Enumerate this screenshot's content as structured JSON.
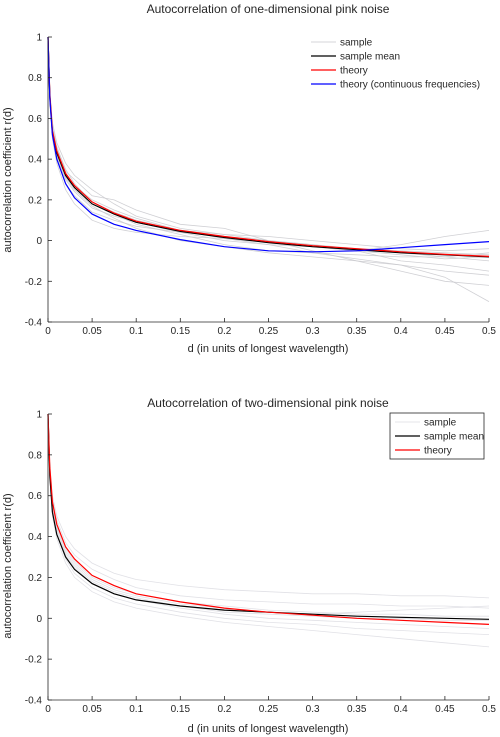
{
  "chart_data": [
    {
      "type": "line",
      "title": "Autocorrelation of one-dimensional pink noise",
      "xlabel": "d (in units of longest wavelength)",
      "ylabel": "autocorrelation coefficient r(d)",
      "xlim": [
        0,
        0.5
      ],
      "ylim": [
        -0.4,
        1
      ],
      "xticks": [
        0,
        0.05,
        0.1,
        0.15,
        0.2,
        0.25,
        0.3,
        0.35,
        0.4,
        0.45,
        0.5
      ],
      "xtick_labels": [
        "0",
        "0.05",
        "0.1",
        "0.15",
        "0.2",
        "0.25",
        "0.3",
        "0.35",
        "0.4",
        "0.45",
        "0.5"
      ],
      "yticks": [
        -0.4,
        -0.2,
        0,
        0.2,
        0.4,
        0.6,
        0.8,
        1
      ],
      "ytick_labels": [
        "-0.4",
        "-0.2",
        "0",
        "0.2",
        "0.4",
        "0.6",
        "0.8",
        "1"
      ],
      "grid": false,
      "legend_position": "top-right",
      "legend_box": false,
      "series": [
        {
          "name": "sample",
          "kind": "samples",
          "color": "#c8c8cc",
          "count": 10,
          "x": [
            0,
            0.002,
            0.005,
            0.01,
            0.02,
            0.03,
            0.05,
            0.075,
            0.1,
            0.15,
            0.2,
            0.25,
            0.3,
            0.35,
            0.4,
            0.45,
            0.5
          ],
          "curves": [
            [
              1,
              0.72,
              0.55,
              0.45,
              0.34,
              0.3,
              0.22,
              0.2,
              0.15,
              0.08,
              0.06,
              0.0,
              -0.05,
              -0.1,
              -0.15,
              -0.2,
              -0.22
            ],
            [
              1,
              0.7,
              0.52,
              0.4,
              0.28,
              0.22,
              0.14,
              0.1,
              0.07,
              0.04,
              0.02,
              0.0,
              -0.02,
              -0.04,
              -0.06,
              -0.08,
              -0.1
            ],
            [
              1,
              0.74,
              0.58,
              0.48,
              0.38,
              0.32,
              0.25,
              0.18,
              0.12,
              0.06,
              0.03,
              0.0,
              -0.02,
              -0.05,
              -0.1,
              -0.12,
              -0.15
            ],
            [
              1,
              0.68,
              0.5,
              0.38,
              0.25,
              0.18,
              0.1,
              0.06,
              0.04,
              0.02,
              0.01,
              -0.01,
              -0.03,
              -0.05,
              -0.07,
              -0.09,
              -0.08
            ],
            [
              1,
              0.71,
              0.54,
              0.43,
              0.32,
              0.26,
              0.18,
              0.13,
              0.08,
              0.03,
              -0.02,
              -0.05,
              -0.06,
              -0.07,
              -0.08,
              -0.08,
              -0.06
            ],
            [
              1,
              0.73,
              0.56,
              0.46,
              0.35,
              0.28,
              0.19,
              0.14,
              0.1,
              0.05,
              0.02,
              -0.01,
              -0.03,
              -0.05,
              -0.02,
              0.02,
              0.05
            ],
            [
              1,
              0.69,
              0.51,
              0.41,
              0.3,
              0.24,
              0.16,
              0.12,
              0.09,
              0.05,
              0.03,
              0.02,
              0.0,
              -0.02,
              -0.04,
              -0.05,
              -0.04
            ],
            [
              1,
              0.72,
              0.55,
              0.44,
              0.33,
              0.27,
              0.2,
              0.15,
              0.11,
              0.05,
              0.01,
              -0.02,
              -0.06,
              -0.09,
              -0.12,
              -0.18,
              -0.3
            ],
            [
              1,
              0.7,
              0.53,
              0.42,
              0.31,
              0.25,
              0.17,
              0.11,
              0.06,
              0.0,
              -0.03,
              -0.06,
              -0.08,
              -0.1,
              -0.12,
              -0.15,
              -0.17
            ],
            [
              1,
              0.71,
              0.53,
              0.43,
              0.32,
              0.26,
              0.18,
              0.13,
              0.09,
              0.04,
              0.0,
              -0.02,
              -0.03,
              -0.04,
              -0.05,
              -0.06,
              -0.07
            ]
          ]
        },
        {
          "name": "sample mean",
          "kind": "line",
          "color": "#000000",
          "x": [
            0,
            0.002,
            0.005,
            0.01,
            0.02,
            0.03,
            0.05,
            0.075,
            0.1,
            0.15,
            0.2,
            0.25,
            0.3,
            0.35,
            0.4,
            0.45,
            0.5
          ],
          "y": [
            1,
            0.71,
            0.53,
            0.43,
            0.32,
            0.26,
            0.18,
            0.13,
            0.09,
            0.045,
            0.015,
            -0.01,
            -0.03,
            -0.045,
            -0.06,
            -0.07,
            -0.08
          ]
        },
        {
          "name": "theory",
          "kind": "line",
          "color": "#ff0000",
          "x": [
            0,
            0.002,
            0.005,
            0.01,
            0.02,
            0.03,
            0.05,
            0.075,
            0.1,
            0.15,
            0.2,
            0.25,
            0.3,
            0.35,
            0.4,
            0.45,
            0.5
          ],
          "y": [
            1,
            0.72,
            0.54,
            0.44,
            0.33,
            0.27,
            0.19,
            0.135,
            0.095,
            0.05,
            0.02,
            -0.005,
            -0.025,
            -0.04,
            -0.055,
            -0.068,
            -0.078
          ]
        },
        {
          "name": "theory (continuous frequencies)",
          "kind": "line",
          "color": "#0000ff",
          "x": [
            0,
            0.002,
            0.005,
            0.01,
            0.02,
            0.03,
            0.05,
            0.075,
            0.1,
            0.15,
            0.2,
            0.25,
            0.3,
            0.35,
            0.4,
            0.45,
            0.5
          ],
          "y": [
            1,
            0.7,
            0.52,
            0.4,
            0.28,
            0.21,
            0.13,
            0.08,
            0.05,
            0.005,
            -0.03,
            -0.05,
            -0.055,
            -0.05,
            -0.035,
            -0.02,
            -0.005
          ]
        }
      ]
    },
    {
      "type": "line",
      "title": "Autocorrelation of two-dimensional pink noise",
      "xlabel": "d (in units of longest wavelength)",
      "ylabel": "autocorrelation coefficient r(d)",
      "xlim": [
        0,
        0.5
      ],
      "ylim": [
        -0.4,
        1
      ],
      "xticks": [
        0,
        0.05,
        0.1,
        0.15,
        0.2,
        0.25,
        0.3,
        0.35,
        0.4,
        0.45,
        0.5
      ],
      "xtick_labels": [
        "0",
        "0.05",
        "0.1",
        "0.15",
        "0.2",
        "0.25",
        "0.3",
        "0.35",
        "0.4",
        "0.45",
        "0.5"
      ],
      "yticks": [
        -0.4,
        -0.2,
        0,
        0.2,
        0.4,
        0.6,
        0.8,
        1
      ],
      "ytick_labels": [
        "-0.4",
        "-0.2",
        "0",
        "0.2",
        "0.4",
        "0.6",
        "0.8",
        "1"
      ],
      "grid": false,
      "legend_position": "top-right",
      "legend_box": true,
      "series": [
        {
          "name": "sample",
          "kind": "samples",
          "color": "#dcdce2",
          "count": 8,
          "x": [
            0,
            0.002,
            0.005,
            0.01,
            0.02,
            0.03,
            0.05,
            0.075,
            0.1,
            0.15,
            0.2,
            0.25,
            0.3,
            0.35,
            0.4,
            0.45,
            0.5
          ],
          "curves": [
            [
              1,
              0.75,
              0.6,
              0.5,
              0.4,
              0.34,
              0.27,
              0.22,
              0.19,
              0.16,
              0.14,
              0.13,
              0.12,
              0.12,
              0.11,
              0.11,
              0.1
            ],
            [
              1,
              0.74,
              0.58,
              0.48,
              0.37,
              0.31,
              0.24,
              0.19,
              0.15,
              0.11,
              0.09,
              0.08,
              0.07,
              0.07,
              0.06,
              0.06,
              0.05
            ],
            [
              1,
              0.72,
              0.55,
              0.44,
              0.32,
              0.26,
              0.18,
              0.13,
              0.1,
              0.06,
              0.03,
              0.02,
              0.01,
              0.0,
              0.0,
              -0.01,
              -0.01
            ],
            [
              1,
              0.7,
              0.52,
              0.41,
              0.29,
              0.22,
              0.15,
              0.1,
              0.07,
              0.03,
              0.0,
              -0.02,
              -0.03,
              -0.05,
              -0.06,
              -0.07,
              -0.08
            ],
            [
              1,
              0.69,
              0.5,
              0.39,
              0.27,
              0.2,
              0.13,
              0.08,
              0.05,
              0.01,
              -0.02,
              -0.04,
              -0.06,
              -0.08,
              -0.1,
              -0.12,
              -0.14
            ],
            [
              1,
              0.73,
              0.56,
              0.45,
              0.34,
              0.28,
              0.2,
              0.15,
              0.12,
              0.08,
              0.06,
              0.04,
              0.03,
              0.02,
              0.02,
              0.01,
              0.01
            ],
            [
              1,
              0.71,
              0.54,
              0.43,
              0.31,
              0.25,
              0.17,
              0.12,
              0.09,
              0.05,
              0.02,
              0.0,
              -0.01,
              -0.02,
              -0.03,
              -0.04,
              -0.05
            ],
            [
              1,
              0.72,
              0.55,
              0.45,
              0.33,
              0.27,
              0.19,
              0.14,
              0.11,
              0.07,
              0.05,
              0.03,
              0.02,
              0.03,
              0.04,
              0.05,
              0.06
            ]
          ]
        },
        {
          "name": "sample mean",
          "kind": "line",
          "color": "#000000",
          "x": [
            0,
            0.002,
            0.005,
            0.01,
            0.02,
            0.03,
            0.05,
            0.075,
            0.1,
            0.15,
            0.2,
            0.25,
            0.3,
            0.35,
            0.4,
            0.45,
            0.5
          ],
          "y": [
            1,
            0.7,
            0.52,
            0.41,
            0.3,
            0.24,
            0.17,
            0.12,
            0.09,
            0.06,
            0.04,
            0.03,
            0.02,
            0.01,
            0.005,
            0.0,
            -0.005
          ]
        },
        {
          "name": "theory",
          "kind": "line",
          "color": "#ff0000",
          "x": [
            0,
            0.002,
            0.005,
            0.01,
            0.02,
            0.03,
            0.05,
            0.075,
            0.1,
            0.15,
            0.2,
            0.25,
            0.3,
            0.35,
            0.4,
            0.45,
            0.5
          ],
          "y": [
            1,
            0.74,
            0.57,
            0.46,
            0.35,
            0.29,
            0.21,
            0.16,
            0.12,
            0.08,
            0.05,
            0.03,
            0.015,
            0.0,
            -0.01,
            -0.02,
            -0.03
          ]
        }
      ]
    }
  ]
}
